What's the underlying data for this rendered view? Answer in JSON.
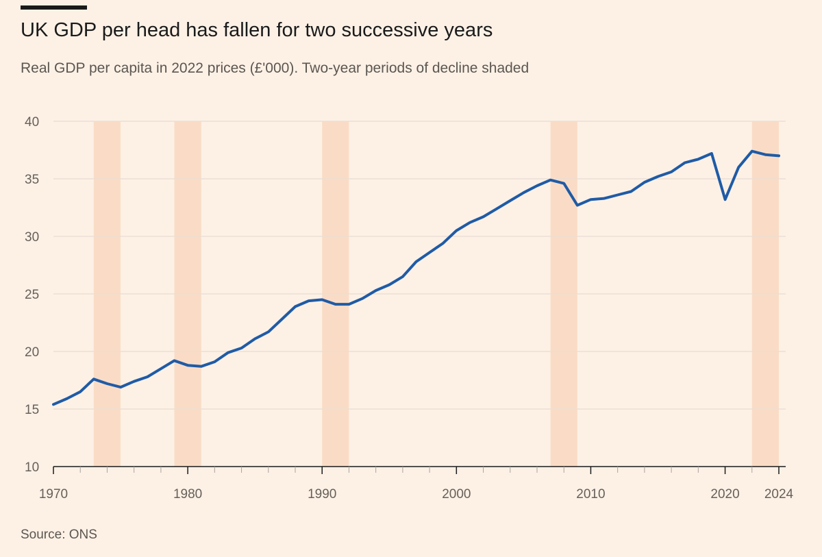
{
  "header": {
    "title": "UK GDP per head has fallen for two successive years",
    "subtitle": "Real GDP per capita in 2022 prices (£'000). Two-year periods of decline shaded"
  },
  "footer": {
    "source": "Source: ONS"
  },
  "colors": {
    "background": "#fdf1e6",
    "line": "#1f5ba6",
    "shade": "#fadcc6",
    "grid": "#e9ddd2",
    "axis": "#1a1a1a"
  },
  "chart_data": {
    "type": "line",
    "title": "UK GDP per head has fallen for two successive years",
    "subtitle": "Real GDP per capita in 2022 prices (£'000). Two-year periods of decline shaded",
    "xlabel": "",
    "ylabel": "",
    "xlim": [
      1970,
      2024
    ],
    "ylim": [
      10,
      40
    ],
    "x_ticks": [
      1970,
      1980,
      1990,
      2000,
      2010,
      2020,
      2024
    ],
    "y_ticks": [
      10,
      15,
      20,
      25,
      30,
      35,
      40
    ],
    "grid": true,
    "legend": "none",
    "shaded_periods": [
      [
        1973,
        1975
      ],
      [
        1979,
        1981
      ],
      [
        1990,
        1992
      ],
      [
        2007,
        2009
      ],
      [
        2022,
        2024
      ]
    ],
    "series": [
      {
        "x": [
          1970,
          1971,
          1972,
          1973,
          1974,
          1975,
          1976,
          1977,
          1978,
          1979,
          1980,
          1981,
          1982,
          1983,
          1984,
          1985,
          1986,
          1987,
          1988,
          1989,
          1990,
          1991,
          1992,
          1993,
          1994,
          1995,
          1996,
          1997,
          1998,
          1999,
          2000,
          2001,
          2002,
          2003,
          2004,
          2005,
          2006,
          2007,
          2008,
          2009,
          2010,
          2011,
          2012,
          2013,
          2014,
          2015,
          2016,
          2017,
          2018,
          2019,
          2020,
          2021,
          2022,
          2023,
          2024
        ],
        "values": [
          15.4,
          15.9,
          16.5,
          17.6,
          17.2,
          16.9,
          17.4,
          17.8,
          18.5,
          19.2,
          18.8,
          18.7,
          19.1,
          19.9,
          20.3,
          21.1,
          21.7,
          22.8,
          23.9,
          24.4,
          24.5,
          24.1,
          24.1,
          24.6,
          25.3,
          25.8,
          26.5,
          27.8,
          28.6,
          29.4,
          30.5,
          31.2,
          31.7,
          32.4,
          33.1,
          33.8,
          34.4,
          34.9,
          34.6,
          32.7,
          33.2,
          33.3,
          33.6,
          33.9,
          34.7,
          35.2,
          35.6,
          36.4,
          36.7,
          37.2,
          33.2,
          36.0,
          37.4,
          37.1,
          37.0
        ]
      }
    ]
  }
}
